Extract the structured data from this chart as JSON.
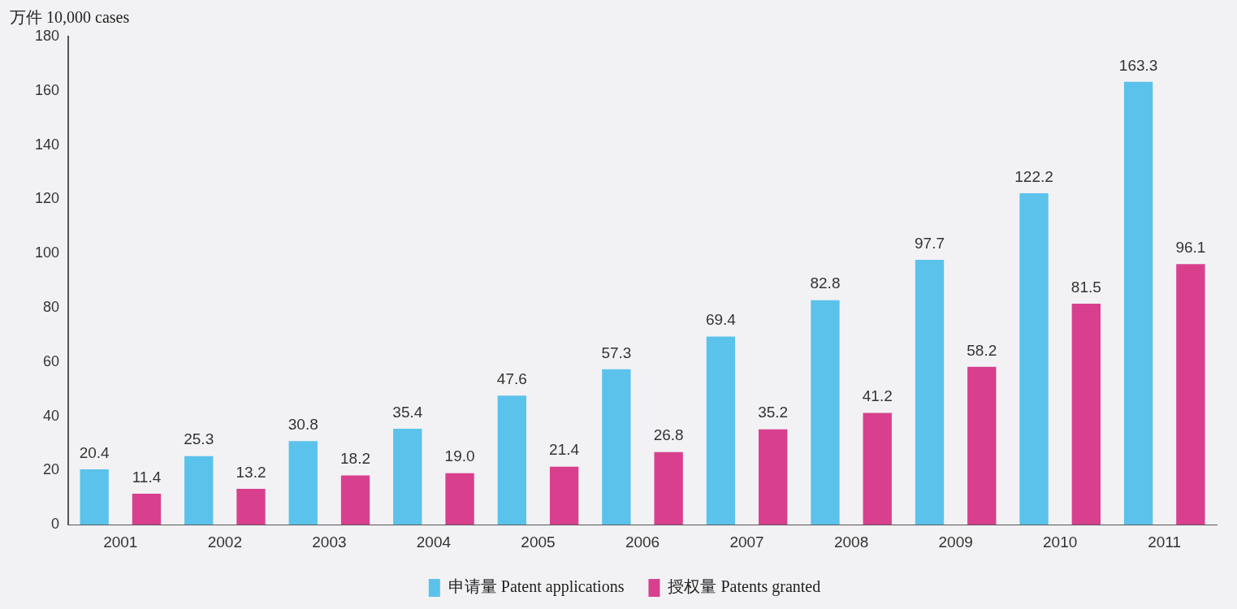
{
  "chart_data": {
    "type": "bar",
    "ylabel": "万件 10,000 cases",
    "categories": [
      "2001",
      "2002",
      "2003",
      "2004",
      "2005",
      "2006",
      "2007",
      "2008",
      "2009",
      "2010",
      "2011"
    ],
    "series": [
      {
        "name": "申请量 Patent applications",
        "color": "#5bc2ec",
        "values": [
          20.4,
          25.3,
          30.8,
          35.4,
          47.6,
          57.3,
          69.4,
          82.8,
          97.7,
          122.2,
          163.3
        ],
        "value_labels": [
          "20.4",
          "25.3",
          "30.8",
          "35.4",
          "47.6",
          "57.3",
          "69.4",
          "82.8",
          "97.7",
          "122.2",
          "163.3"
        ]
      },
      {
        "name": "授权量 Patents granted",
        "color": "#d8408e",
        "values": [
          11.4,
          13.2,
          18.2,
          19.0,
          21.4,
          26.8,
          35.2,
          41.2,
          58.2,
          81.5,
          96.1
        ],
        "value_labels": [
          "11.4",
          "13.2",
          "18.2",
          "19.0",
          "21.4",
          "26.8",
          "35.2",
          "41.2",
          "58.2",
          "81.5",
          "96.1"
        ]
      }
    ],
    "ylim": [
      0,
      180
    ],
    "yticks": [
      0,
      20,
      40,
      60,
      80,
      100,
      120,
      140,
      160,
      180
    ],
    "grid": false,
    "legend": "bottom"
  }
}
